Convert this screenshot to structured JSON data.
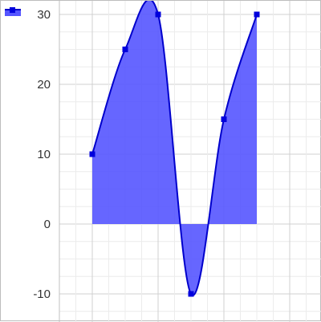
{
  "chart_data": {
    "type": "area",
    "x": [
      1,
      2,
      3,
      4,
      5,
      6
    ],
    "series": [
      {
        "values": [
          10,
          25,
          30,
          -10,
          15,
          30
        ]
      }
    ],
    "y_ticks": [
      "30",
      "20",
      "10",
      "0",
      "-10"
    ],
    "y_tick_values": [
      30,
      20,
      10,
      0,
      -10
    ],
    "ylim": [
      -13.6,
      32
    ],
    "xlim": [
      0,
      7.8
    ],
    "smooth": true,
    "grid": true,
    "legend": "top-left",
    "colors": {
      "line": "#0000cc",
      "fill": "#5555ff",
      "marker": "#0000dd",
      "grid_major": "#d0d0d0",
      "grid_minor": "#ececec"
    }
  }
}
